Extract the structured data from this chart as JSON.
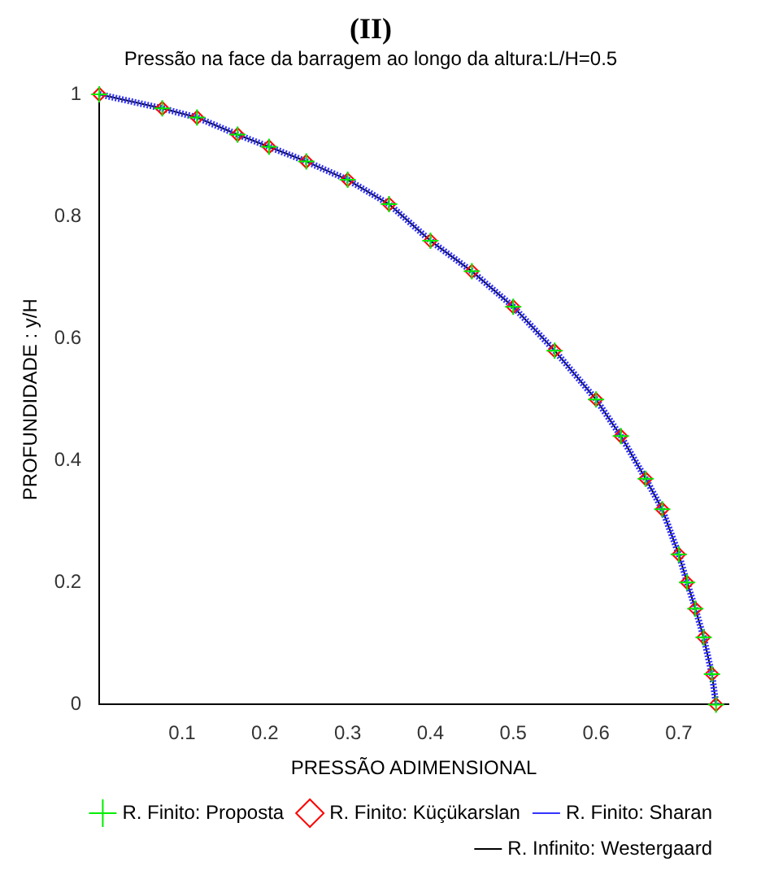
{
  "chart_data": {
    "type": "line",
    "title": "(II)",
    "subtitle": "Pressão na face da barragem ao longo da altura:L/H=0.5",
    "xlabel": "PRESSÃO ADIMENSIONAL",
    "ylabel": "PROFUNDIDADE : y/H",
    "x": [
      0,
      0.076,
      0.118,
      0.167,
      0.205,
      0.25,
      0.3,
      0.35,
      0.4,
      0.45,
      0.5,
      0.55,
      0.6,
      0.63,
      0.66,
      0.68,
      0.7,
      0.71,
      0.72,
      0.73,
      0.74,
      0.745
    ],
    "series": [
      {
        "name": "R. Infinito: Westergaard",
        "color": "#000000",
        "line_style": "solid",
        "marker": "none",
        "values": [
          1,
          0.977,
          0.962,
          0.934,
          0.914,
          0.89,
          0.86,
          0.82,
          0.76,
          0.71,
          0.652,
          0.58,
          0.5,
          0.44,
          0.37,
          0.32,
          0.246,
          0.2,
          0.157,
          0.11,
          0.05,
          0
        ]
      },
      {
        "name": "R. Finito: Sharan",
        "color": "#3333ff",
        "line_style": "dotted",
        "marker": "none",
        "values": [
          1,
          0.977,
          0.962,
          0.934,
          0.914,
          0.89,
          0.86,
          0.82,
          0.76,
          0.71,
          0.652,
          0.58,
          0.5,
          0.44,
          0.37,
          0.32,
          0.246,
          0.2,
          0.157,
          0.11,
          0.05,
          0
        ]
      },
      {
        "name": "R. Finito: Küçükarslan",
        "color": "#ff0000",
        "type": "scatter",
        "marker": "diamond",
        "values": [
          1,
          0.977,
          0.962,
          0.934,
          0.914,
          0.89,
          0.86,
          0.82,
          0.76,
          0.71,
          0.652,
          0.58,
          0.5,
          0.44,
          0.37,
          0.32,
          0.246,
          0.2,
          0.157,
          0.11,
          0.05,
          0
        ]
      },
      {
        "name": "R. Finito: Proposta",
        "color": "#00ee00",
        "type": "scatter",
        "marker": "cross",
        "values": [
          1,
          0.977,
          0.962,
          0.934,
          0.914,
          0.89,
          0.86,
          0.82,
          0.76,
          0.71,
          0.652,
          0.58,
          0.5,
          0.44,
          0.37,
          0.32,
          0.246,
          0.2,
          0.157,
          0.11,
          0.05,
          0
        ]
      }
    ],
    "xlim": [
      0,
      0.76
    ],
    "xticks": [
      0.1,
      0.2,
      0.3,
      0.4,
      0.5,
      0.6,
      0.7
    ],
    "ylim": [
      0,
      1
    ],
    "yticks": [
      0,
      0.2,
      0.4,
      0.6,
      0.8,
      1
    ],
    "grid": false,
    "legend": "bottom"
  }
}
